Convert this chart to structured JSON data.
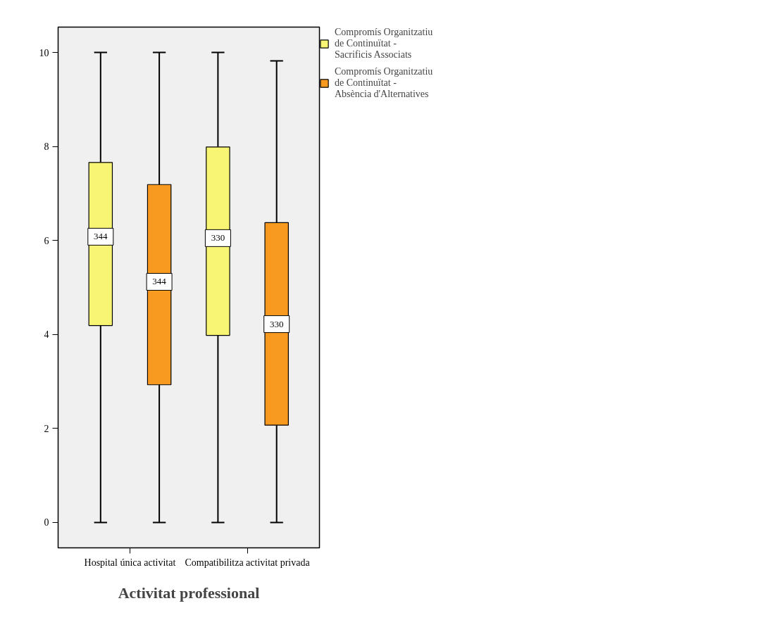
{
  "chart_data": {
    "type": "box",
    "xlabel": "Activitat professional",
    "categories": [
      "Hospital única activitat",
      "Compatibilitza activitat privada"
    ],
    "ylim": [
      -0.54,
      10.54
    ],
    "yticks": [
      0,
      2,
      4,
      6,
      8,
      10
    ],
    "grid": false,
    "legend": "top right",
    "series": [
      {
        "name": "Compromís Organitzatiu de Continuïtat - Sacrificis Associats",
        "color": "#f8f574",
        "value_labels": [
          "344",
          "330"
        ],
        "boxes": [
          {
            "low": 0,
            "q1": 4.19,
            "median": 6.08,
            "q3": 7.66,
            "high": 10
          },
          {
            "low": 0,
            "q1": 3.98,
            "median": 6.05,
            "q3": 7.99,
            "high": 10
          }
        ]
      },
      {
        "name": "Compromís Organitzatiu de Continuïtat - Absència d'Alternatives",
        "color": "#f89a1f",
        "value_labels": [
          "344",
          "330"
        ],
        "boxes": [
          {
            "low": 0,
            "q1": 2.93,
            "median": 5.12,
            "q3": 7.19,
            "high": 10
          },
          {
            "low": 0,
            "q1": 2.07,
            "median": 4.22,
            "q3": 6.38,
            "high": 9.82
          }
        ]
      }
    ]
  }
}
